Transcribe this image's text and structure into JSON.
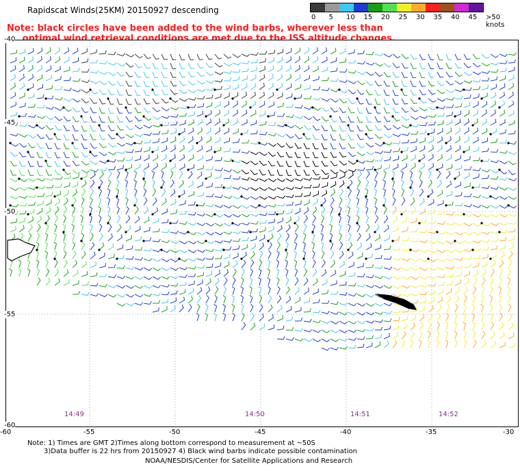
{
  "title": "Rapidscat Winds(25KM) 20150927 descending",
  "note_line1": "Note: black circles have been added to the wind barbs, wherever less than",
  "note_line2": "optimal wind retrieval conditions are met due to the ISS altitude changes.",
  "legend": {
    "labels": [
      "0",
      "5",
      "10",
      "15",
      "20",
      "25",
      "30",
      "35",
      "40",
      "45",
      ">50 knots"
    ],
    "colors": [
      "#3a3a3a",
      "#9a9a9a",
      "#3cc8f0",
      "#1e3cd2",
      "#14a014",
      "#50e050",
      "#f0f028",
      "#ffaa28",
      "#ff1e1e",
      "#a0501e",
      "#d228d2",
      "#6414a0"
    ]
  },
  "y_ticks": [
    "-40",
    "-45",
    "-50",
    "-55",
    "-60"
  ],
  "x_ticks": [
    "-60",
    "-55",
    "-50",
    "-45",
    "-40",
    "-35",
    "-30"
  ],
  "times": [
    "14:49",
    "14:50",
    "14:51",
    "14:52"
  ],
  "footer": {
    "line1": "Note: 1) Times are GMT 2)Times along bottom correspond to measurement at ~50S",
    "line2": "3)Data buffer is 22 hrs from 20150927 4) Black wind barbs indicate possible contamination",
    "line3": "NOAA/NESDIS/Center for Satellite Applications and Research"
  }
}
